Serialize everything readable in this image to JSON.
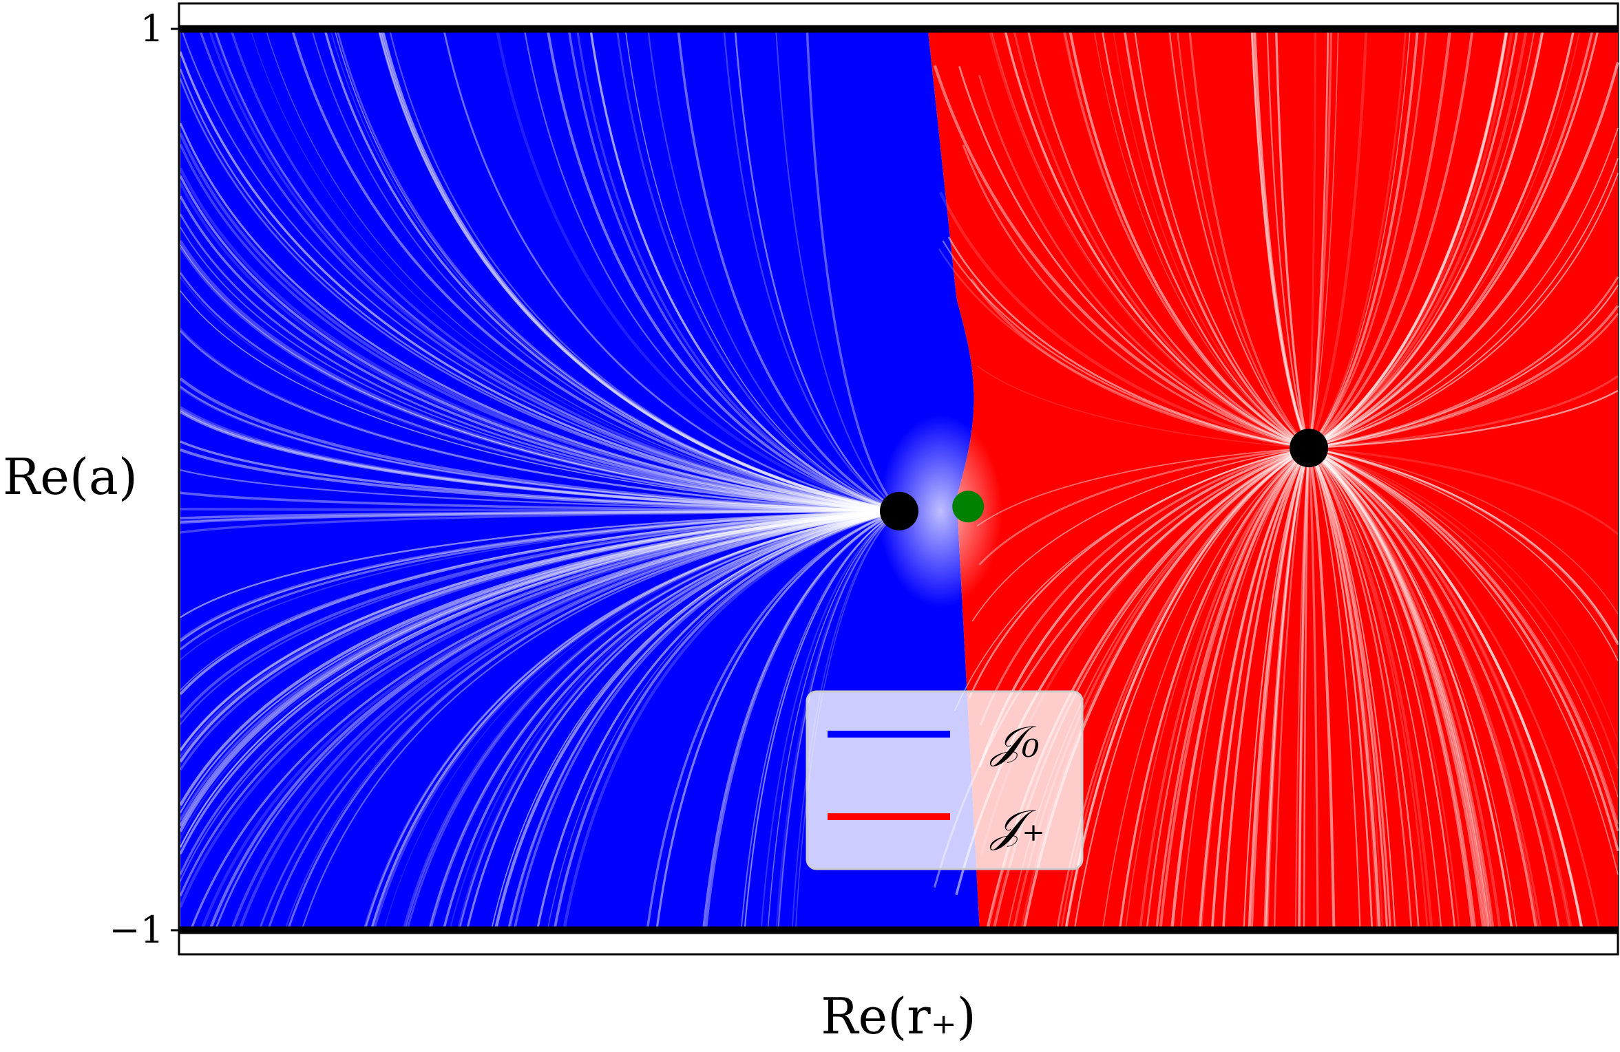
{
  "chart_data": {
    "type": "streamplot",
    "xlabel": "Re(r₊)",
    "ylabel": "Re(a)",
    "ylim": [
      -1,
      1
    ],
    "y_ticks": [
      "1",
      "−1"
    ],
    "grid": false,
    "legend_position": "lower-center",
    "regions": [
      {
        "name": "𝒥₀",
        "color": "#0000ff",
        "side": "left"
      },
      {
        "name": "𝒥₊",
        "color": "#ff0000",
        "side": "right"
      }
    ],
    "boundary_lines": [
      1,
      -1
    ],
    "critical_points": [
      {
        "label": "",
        "color": "#000000",
        "x_frac": 0.5,
        "y": -0.07
      },
      {
        "label": "",
        "color": "#008000",
        "x_frac": 0.548,
        "y": -0.06
      },
      {
        "label": "",
        "color": "#000000",
        "x_frac": 0.785,
        "y": 0.07
      }
    ]
  }
}
